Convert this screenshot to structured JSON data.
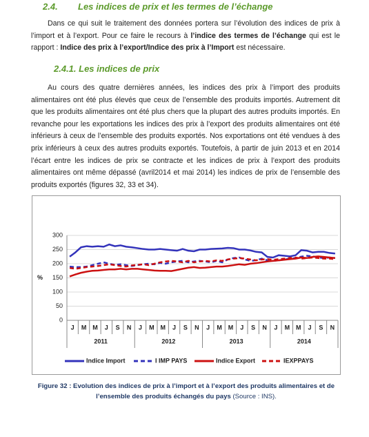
{
  "section": {
    "number": "2.4.",
    "title": "Les indices de prix et les termes de l’échange"
  },
  "paragraphs": [
    [
      "Dans ce qui suit le traitement des données portera sur l’évolution des indices de prix à l’import et à l’export. Pour ce faire le recours à ",
      "l’indice des termes de l’échange",
      " qui est le rapport : ",
      "Indice des prix à l’export/Indice des prix à l’Import",
      " est nécessaire."
    ],
    [
      "Au cours des quatre dernières années, les indices des prix à l’import des produits alimentaires ont été plus élevés que ceux de l’ensemble des produits importés. Autrement dit que les produits alimentaires ont été plus chers que la plupart des autres produits importés. En revanche pour les exportations les indices des prix à l’export des produits alimentaires ont été inférieurs à ceux de l’ensemble des produits exportés. Nos exportations ont été vendues à des prix inférieurs à ceux des autres produits exportés. Toutefois, à partir de juin 2013 et en 2014 l’écart entre les indices de prix se contracte et les indices de prix à l’export des produits alimentaires ont même dépassé (avril2014 et mai 2014) les indices de prix de l’ensemble des produits exportés (figures 32, 33 et 34)."
    ]
  ],
  "subsection": "2.4.1. Les indices de prix",
  "chart_data": {
    "type": "line",
    "y_label": "%",
    "categories": [
      "J",
      null,
      "M",
      null,
      "M",
      null,
      "J",
      null,
      "S",
      null,
      "N",
      null,
      "J",
      null,
      "M",
      null,
      "M",
      null,
      "J",
      null,
      "S",
      null,
      "N",
      null,
      "J",
      null,
      "M",
      null,
      "M",
      null,
      "J",
      null,
      "S",
      null,
      "N",
      null,
      "J",
      null,
      "M",
      null,
      "M",
      null,
      "J",
      null,
      "S",
      null,
      "N",
      null
    ],
    "x_groups": [
      "2011",
      "2012",
      "2013",
      "2014"
    ],
    "ylim": [
      0,
      300
    ],
    "yticks": [
      0,
      50,
      100,
      150,
      200,
      250,
      300
    ],
    "grid": true,
    "series": [
      {
        "name": "Indice Import",
        "color": "#3333bb",
        "style": "solid",
        "values": [
          225,
          240,
          258,
          262,
          260,
          262,
          260,
          268,
          262,
          265,
          260,
          258,
          255,
          252,
          250,
          250,
          252,
          250,
          248,
          246,
          252,
          246,
          244,
          250,
          250,
          252,
          253,
          254,
          256,
          255,
          250,
          250,
          247,
          242,
          240,
          224,
          222,
          230,
          228,
          226,
          230,
          248,
          246,
          240,
          242,
          242,
          238,
          236
        ]
      },
      {
        "name": "I IMP PAYS",
        "color": "#3333bb",
        "style": "dashed",
        "values": [
          190,
          188,
          188,
          190,
          195,
          200,
          205,
          200,
          196,
          198,
          195,
          192,
          195,
          198,
          200,
          198,
          203,
          200,
          205,
          208,
          210,
          205,
          208,
          210,
          208,
          205,
          210,
          205,
          215,
          220,
          222,
          215,
          210,
          212,
          218,
          212,
          210,
          212,
          215,
          218,
          220,
          225,
          228,
          226,
          222,
          220,
          222,
          220
        ]
      },
      {
        "name": "Indice Export",
        "color": "#cc1111",
        "style": "solid",
        "values": [
          155,
          162,
          168,
          172,
          175,
          176,
          178,
          180,
          180,
          182,
          180,
          182,
          182,
          180,
          178,
          176,
          175,
          175,
          174,
          178,
          182,
          186,
          188,
          185,
          186,
          188,
          190,
          190,
          192,
          195,
          198,
          196,
          200,
          202,
          205,
          208,
          210,
          212,
          214,
          216,
          218,
          222,
          220,
          224,
          226,
          224,
          222,
          220
        ]
      },
      {
        "name": "IEXPPAYS",
        "color": "#cc1111",
        "style": "dashed",
        "values": [
          185,
          182,
          185,
          188,
          190,
          192,
          195,
          198,
          195,
          192,
          190,
          194,
          196,
          198,
          195,
          200,
          205,
          208,
          210,
          208,
          205,
          210,
          205,
          208,
          210,
          208,
          212,
          210,
          215,
          218,
          220,
          218,
          215,
          212,
          215,
          216,
          214,
          216,
          218,
          220,
          222,
          218,
          220,
          222,
          220,
          218,
          218,
          216
        ]
      }
    ]
  },
  "caption": [
    "Figure 32 : Evolution des indices de prix à l’import et à l’export des produits alimentaires et de l’ensemble des produits échangés du pays",
    " (Source : INS)."
  ]
}
